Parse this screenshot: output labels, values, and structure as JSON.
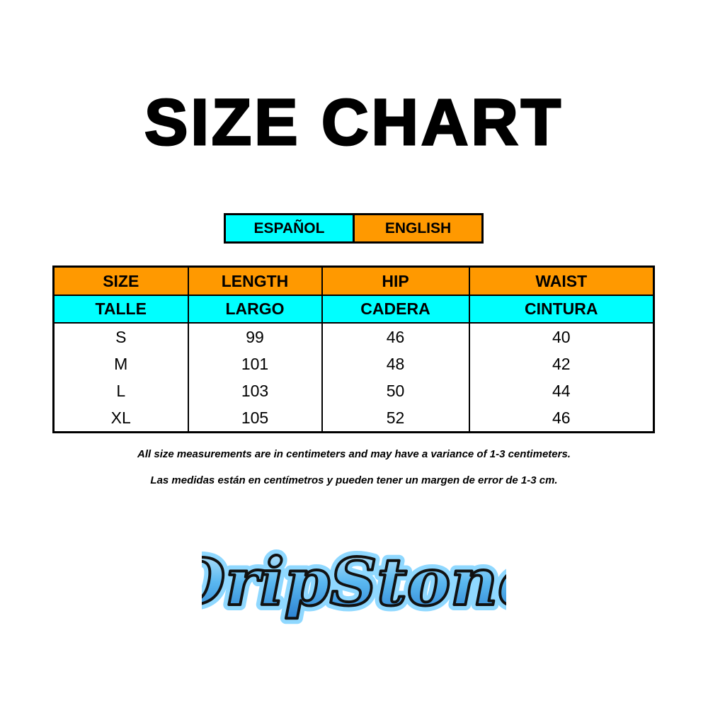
{
  "title": "SIZE CHART",
  "legend": {
    "spanish": "ESPAÑOL",
    "english": "ENGLISH",
    "colors": {
      "spanish": "#00ffff",
      "english": "#ff9900"
    }
  },
  "table": {
    "headers_en": [
      "SIZE",
      "LENGTH",
      "HIP",
      "WAIST"
    ],
    "headers_es": [
      "TALLE",
      "LARGO",
      "CADERA",
      "CINTURA"
    ],
    "rows": [
      [
        "S",
        "99",
        "46",
        "40"
      ],
      [
        "M",
        "101",
        "48",
        "42"
      ],
      [
        "L",
        "103",
        "50",
        "44"
      ],
      [
        "XL",
        "105",
        "52",
        "46"
      ]
    ]
  },
  "notes": {
    "en": "All size measurements are in centimeters and may have a variance of 1-3 centimeters.",
    "es": "Las medidas están en centímetros y pueden tener un margen de error de 1-3 cm."
  },
  "logo": {
    "text": "DripStone"
  }
}
